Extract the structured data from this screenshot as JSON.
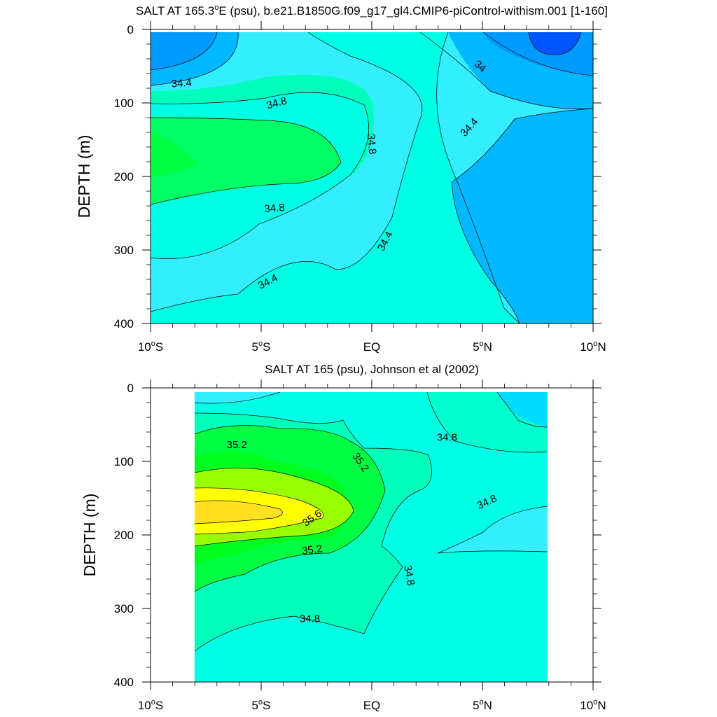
{
  "chart_data": [
    {
      "type": "contour",
      "title_pre": "SALT AT 165.3",
      "title_deg": "o",
      "title_post": "E (psu), b.e21.B1850G.f09_g17_gl4.CMIP6-piControl-withism.001 [1-160]",
      "ylabel": "DEPTH (m)",
      "xlim": [
        -10,
        10
      ],
      "ylim": [
        0,
        400
      ],
      "y_ticks": [
        "0",
        "100",
        "200",
        "300",
        "400"
      ],
      "x_ticks": [
        {
          "text": "10",
          "deg": "o",
          "suffix": "S"
        },
        {
          "text": "5",
          "deg": "o",
          "suffix": "S"
        },
        {
          "text": "EQ",
          "deg": "",
          "suffix": ""
        },
        {
          "text": "5",
          "deg": "o",
          "suffix": "N"
        },
        {
          "text": "10",
          "deg": "o",
          "suffix": "N"
        }
      ],
      "contour_labels": [
        {
          "text": "34.4",
          "lat": -8.6,
          "depth": 73,
          "rot": -4
        },
        {
          "text": "34.8",
          "lat": -4.3,
          "depth": 100,
          "rot": -15
        },
        {
          "text": "34.8",
          "lat": 0.0,
          "depth": 156,
          "rot": 85
        },
        {
          "text": "34.8",
          "lat": -4.4,
          "depth": 243,
          "rot": -5
        },
        {
          "text": "34.4",
          "lat": -4.7,
          "depth": 343,
          "rot": -28
        },
        {
          "text": "34.4",
          "lat": 0.6,
          "depth": 288,
          "rot": -62
        },
        {
          "text": "34.4",
          "lat": 4.4,
          "depth": 133,
          "rot": -48
        },
        {
          "text": "34",
          "lat": 4.9,
          "depth": 50,
          "rot": 40
        }
      ]
    },
    {
      "type": "contour",
      "title": "SALT AT 165 (psu), Johnson et al (2002)",
      "ylabel": "DEPTH (m)",
      "xlim": [
        -10,
        10
      ],
      "ylim": [
        0,
        400
      ],
      "data_lat_range": [
        -8,
        8
      ],
      "y_ticks": [
        "0",
        "100",
        "200",
        "300",
        "400"
      ],
      "x_ticks": [
        {
          "text": "10",
          "deg": "o",
          "suffix": "S"
        },
        {
          "text": "5",
          "deg": "o",
          "suffix": "S"
        },
        {
          "text": "EQ",
          "deg": "",
          "suffix": ""
        },
        {
          "text": "5",
          "deg": "o",
          "suffix": "N"
        },
        {
          "text": "10",
          "deg": "o",
          "suffix": "N"
        }
      ],
      "contour_labels": [
        {
          "text": "35.2",
          "lat": -6.1,
          "depth": 77,
          "rot": 0
        },
        {
          "text": "35.2",
          "lat": -0.5,
          "depth": 101,
          "rot": 55
        },
        {
          "text": "35.6",
          "lat": -2.7,
          "depth": 177,
          "rot": -35
        },
        {
          "text": "35.2",
          "lat": -2.7,
          "depth": 220,
          "rot": -8
        },
        {
          "text": "34.8",
          "lat": 3.4,
          "depth": 67,
          "rot": 0
        },
        {
          "text": "34.8",
          "lat": 5.2,
          "depth": 155,
          "rot": -25
        },
        {
          "text": "34.8",
          "lat": 1.7,
          "depth": 255,
          "rot": 80
        },
        {
          "text": "34.8",
          "lat": -2.8,
          "depth": 314,
          "rot": 0
        }
      ]
    }
  ],
  "colors": {
    "lt34": "#0055ff",
    "c34_0": "#009bff",
    "c34_2": "#00b8ff",
    "c34_4": "#00dcff",
    "c34_6": "#33eeff",
    "c34_8": "#00ffe5",
    "c35_0": "#00ffbb",
    "c35_2": "#00ff44",
    "c35_4": "#99ff00",
    "c35_6": "#ffff00",
    "c35_8": "#ffe020",
    "line": "#000000"
  }
}
